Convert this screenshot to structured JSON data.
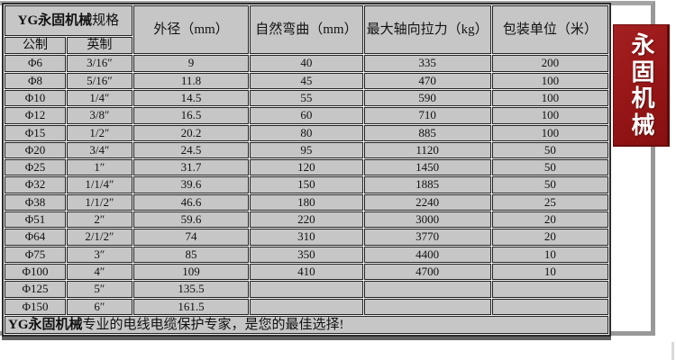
{
  "table": {
    "header": {
      "title_bold": "YG永固机械",
      "title_rest": "规格",
      "metric_label": "公制",
      "imperial_label": "英制",
      "cols": [
        "外径（mm）",
        "自然弯曲（mm）",
        "最大轴向拉力（kg）",
        "包装单位（米）"
      ]
    },
    "rows": [
      {
        "metric": "Φ6",
        "imperial": "3/16″",
        "od": "9",
        "bend": "40",
        "pull": "335",
        "pack": "200"
      },
      {
        "metric": "Φ8",
        "imperial": "5/16″",
        "od": "11.8",
        "bend": "45",
        "pull": "470",
        "pack": "100"
      },
      {
        "metric": "Φ10",
        "imperial": "1/4″",
        "od": "14.5",
        "bend": "55",
        "pull": "590",
        "pack": "100"
      },
      {
        "metric": "Φ12",
        "imperial": "3/8″",
        "od": "16.5",
        "bend": "60",
        "pull": "710",
        "pack": "100"
      },
      {
        "metric": "Φ15",
        "imperial": "1/2″",
        "od": "20.2",
        "bend": "80",
        "pull": "885",
        "pack": "100"
      },
      {
        "metric": "Φ20",
        "imperial": "3/4″",
        "od": "24.5",
        "bend": "95",
        "pull": "1120",
        "pack": "50"
      },
      {
        "metric": "Φ25",
        "imperial": "1″",
        "od": "31.7",
        "bend": "120",
        "pull": "1450",
        "pack": "50"
      },
      {
        "metric": "Φ32",
        "imperial": "1/1/4″",
        "od": "39.6",
        "bend": "150",
        "pull": "1885",
        "pack": "50"
      },
      {
        "metric": "Φ38",
        "imperial": "1/1/2″",
        "od": "46.6",
        "bend": "180",
        "pull": "2240",
        "pack": "25"
      },
      {
        "metric": "Φ51",
        "imperial": "2″",
        "od": "59.6",
        "bend": "220",
        "pull": "3000",
        "pack": "20"
      },
      {
        "metric": "Φ64",
        "imperial": "2/1/2″",
        "od": "74",
        "bend": "310",
        "pull": "3770",
        "pack": "20"
      },
      {
        "metric": "Φ75",
        "imperial": "3″",
        "od": "85",
        "bend": "350",
        "pull": "4400",
        "pack": "10"
      },
      {
        "metric": "Φ100",
        "imperial": "4″",
        "od": "109",
        "bend": "410",
        "pull": "4700",
        "pack": "10"
      },
      {
        "metric": "Φ125",
        "imperial": "5″",
        "od": "135.5",
        "bend": "",
        "pull": "",
        "pack": ""
      },
      {
        "metric": "Φ150",
        "imperial": "6″",
        "od": "161.5",
        "bend": "",
        "pull": "",
        "pack": ""
      }
    ],
    "footer": {
      "brand_bold": "YG永固机械",
      "slogan_rest": "专业的电线电缆保护专家，是您的最佳选择!"
    }
  },
  "banner": {
    "chars": [
      "永",
      "固",
      "机",
      "械"
    ]
  },
  "colors": {
    "cell_gray": "#c6c6c6",
    "frame_gray": "#a4a4a4",
    "banner_red": "#991717",
    "border_dark": "#242424"
  }
}
